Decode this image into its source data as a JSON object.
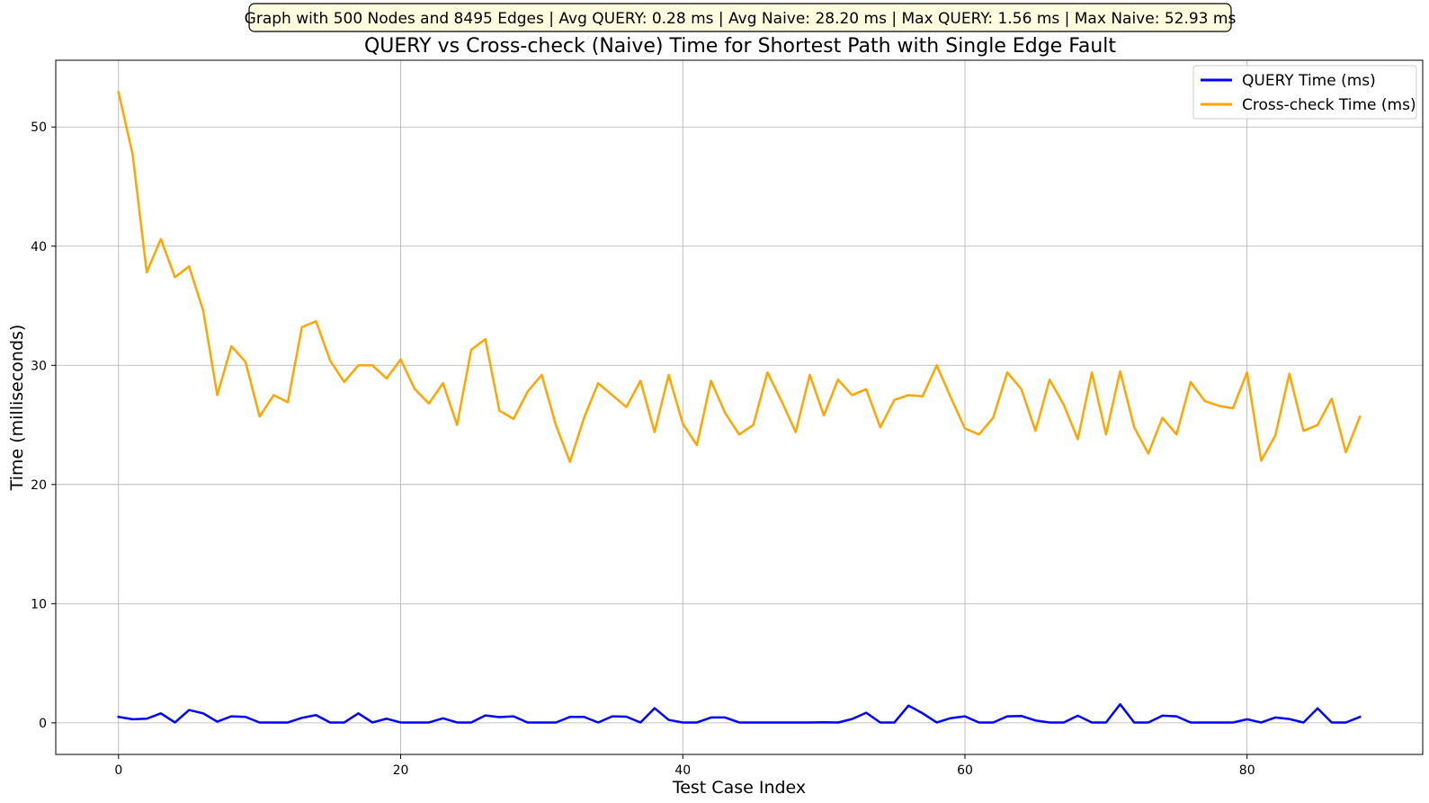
{
  "chart_data": {
    "type": "line",
    "summary": "Graph with 500 Nodes and 8495 Edges | Avg QUERY: 0.28 ms | Avg Naive: 28.20 ms | Max QUERY: 1.56 ms | Max Naive: 52.93 ms",
    "title": "QUERY vs Cross-check (Naive) Time for Shortest Path with Single Edge Fault",
    "xlabel": "Test Case Index",
    "ylabel": "Time (milliseconds)",
    "xlim": [
      -4.45,
      92.45
    ],
    "ylim": [
      -2.65,
      55.6
    ],
    "xticks": [
      0,
      20,
      40,
      60,
      80
    ],
    "yticks": [
      0,
      10,
      20,
      30,
      40,
      50
    ],
    "grid": true,
    "legend_position": "top-right",
    "series": [
      {
        "name": "QUERY Time (ms)",
        "color": "#0000ff",
        "values": [
          0.5,
          0.3,
          0.35,
          0.8,
          0.03,
          1.08,
          0.8,
          0.1,
          0.55,
          0.5,
          0.03,
          0.03,
          0.03,
          0.42,
          0.65,
          0.03,
          0.03,
          0.8,
          0.03,
          0.35,
          0.03,
          0.03,
          0.03,
          0.38,
          0.03,
          0.03,
          0.62,
          0.48,
          0.55,
          0.03,
          0.03,
          0.03,
          0.5,
          0.5,
          0.03,
          0.55,
          0.52,
          0.03,
          1.23,
          0.25,
          0.03,
          0.03,
          0.45,
          0.45,
          0.03,
          0.03,
          0.03,
          0.03,
          0.03,
          0.03,
          0.05,
          0.03,
          0.32,
          0.85,
          0.03,
          0.03,
          1.45,
          0.8,
          0.03,
          0.4,
          0.55,
          0.03,
          0.03,
          0.55,
          0.58,
          0.2,
          0.03,
          0.03,
          0.6,
          0.03,
          0.03,
          1.56,
          0.03,
          0.03,
          0.6,
          0.55,
          0.03,
          0.03,
          0.03,
          0.03,
          0.3,
          0.03,
          0.45,
          0.32,
          0.03,
          1.22,
          0.03,
          0.03,
          0.5
        ]
      },
      {
        "name": "Cross-check Time (ms)",
        "color": "#ffa500",
        "values": [
          52.93,
          47.7,
          37.8,
          40.6,
          37.4,
          38.3,
          34.6,
          27.5,
          31.6,
          30.3,
          25.7,
          27.5,
          26.9,
          33.2,
          33.7,
          30.4,
          28.6,
          30.0,
          30.0,
          28.9,
          30.5,
          28.0,
          26.8,
          28.5,
          25.0,
          31.3,
          32.2,
          26.2,
          25.5,
          27.8,
          29.2,
          25.0,
          21.9,
          25.6,
          28.5,
          27.5,
          26.5,
          28.7,
          24.4,
          29.2,
          25.1,
          23.3,
          28.7,
          26.0,
          24.2,
          25.0,
          29.4,
          27.0,
          24.4,
          29.2,
          25.8,
          28.8,
          27.5,
          28.0,
          24.8,
          27.1,
          27.5,
          27.4,
          30.0,
          27.3,
          24.7,
          24.2,
          25.6,
          29.4,
          28.0,
          24.5,
          28.8,
          26.7,
          23.8,
          29.4,
          24.2,
          29.5,
          24.8,
          22.6,
          25.6,
          24.2,
          28.6,
          27.0,
          26.6,
          26.4,
          29.4,
          22.0,
          24.1,
          29.3,
          24.5,
          25.0,
          27.2,
          22.7,
          25.7
        ]
      }
    ]
  }
}
